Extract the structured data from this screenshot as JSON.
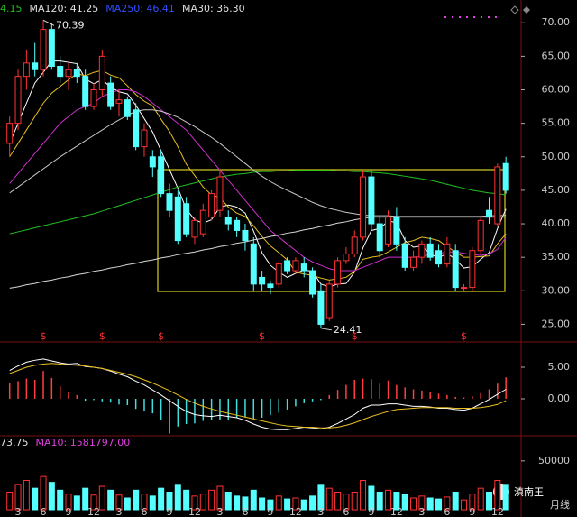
{
  "chart_data": [
    {
      "type": "candlestick",
      "legend": [
        {
          "label": "4.15",
          "color": "#20c020"
        },
        {
          "label": "MA120: 41.25",
          "color": "#e0e0e0"
        },
        {
          "label": "MA250: 46.41",
          "color": "#3050ff"
        },
        {
          "label": "MA30: 36.30",
          "color": "#e0e0e0"
        }
      ],
      "up_color": "#ff3232",
      "down_color": "#54ffff",
      "ylim": [
        22.5,
        73.4
      ],
      "yticks": [
        {
          "value": 25,
          "label": "25.00"
        },
        {
          "value": 30,
          "label": "30.00"
        },
        {
          "value": 35,
          "label": "35.00"
        },
        {
          "value": 40,
          "label": "40.00"
        },
        {
          "value": 45,
          "label": "45.00"
        },
        {
          "value": 50,
          "label": "50.00"
        },
        {
          "value": 55,
          "label": "55.00"
        },
        {
          "value": 60,
          "label": "60.00"
        },
        {
          "value": 65,
          "label": "65.00"
        },
        {
          "value": 70,
          "label": "70.00"
        }
      ],
      "open": [
        52,
        55,
        62,
        64,
        63,
        69,
        63.5,
        62,
        63,
        62,
        57.5,
        60,
        61,
        58,
        58.5,
        57,
        51.5,
        50,
        50,
        44.5,
        44,
        43,
        38,
        38.5,
        41,
        42,
        41,
        40.5,
        39,
        37,
        32,
        31,
        31,
        34.5,
        33,
        34,
        33,
        30,
        26,
        31,
        34.5,
        35.5,
        38,
        47,
        40,
        37,
        41,
        37,
        33.5,
        35,
        37,
        36,
        34,
        36,
        30.5,
        30.5,
        36,
        42,
        40,
        49
      ],
      "high": [
        56,
        63,
        66,
        67,
        70.39,
        70,
        65,
        64,
        64,
        63,
        61,
        66,
        62,
        60,
        59,
        58,
        55,
        51,
        51,
        46,
        45,
        44,
        41,
        43,
        45,
        48,
        42,
        41,
        40,
        38,
        33,
        31.5,
        34.5,
        35,
        35,
        35,
        33.5,
        31,
        31.5,
        35,
        36.5,
        39,
        48,
        48,
        41,
        42,
        42.5,
        38,
        36,
        37.5,
        38,
        37,
        38,
        37,
        31,
        36.5,
        41,
        44,
        49,
        50
      ],
      "low": [
        50,
        54,
        60,
        62,
        62,
        63,
        61,
        60,
        61,
        57,
        57,
        59,
        57,
        56,
        55.5,
        51,
        50,
        47,
        44,
        41,
        37,
        38,
        37,
        38,
        40.5,
        41,
        39,
        38,
        36,
        30,
        30,
        29.5,
        30.5,
        32.5,
        32.5,
        32,
        29,
        24.41,
        25.5,
        30.5,
        34,
        35,
        37.5,
        39,
        35,
        36.5,
        36,
        33,
        33,
        34,
        34.5,
        33.5,
        33.5,
        30,
        30,
        30,
        35.5,
        40,
        39.5,
        44.5
      ],
      "close": [
        55,
        62,
        64,
        63,
        69,
        63.5,
        62,
        63,
        62,
        57.5,
        60,
        65,
        57.5,
        58.5,
        56,
        51.5,
        54,
        48.5,
        44.5,
        42,
        37.5,
        38.5,
        40.5,
        42,
        44.5,
        47,
        40,
        39,
        37.5,
        31,
        31,
        30.5,
        34,
        33,
        34.5,
        33,
        29.5,
        25,
        31,
        34.5,
        35.5,
        38,
        47,
        40,
        36,
        41,
        37,
        33.5,
        35,
        37,
        35,
        34,
        37,
        30.5,
        30.5,
        36,
        40.5,
        41,
        48.5,
        45
      ],
      "series": [
        {
          "color": "#ffffff",
          "values": [
            52,
            55,
            58,
            61,
            62.6,
            64.3,
            64.3,
            64.1,
            63.9,
            61.6,
            60.9,
            61.5,
            60.4,
            59.7,
            59.4,
            57.7,
            55.7,
            53.7,
            50.9,
            48.1,
            45.3,
            42.2,
            40.6,
            40.1,
            40.6,
            42.5,
            42.8,
            42.5,
            41.6,
            38.9,
            35.7,
            33.8,
            32.8,
            32.0,
            32.6,
            33.1,
            32.9,
            31.0,
            30.6,
            31.0,
            31.1,
            32.8,
            36.4,
            39.0,
            39.3,
            40.4,
            40.2,
            37.5,
            36.5,
            36.7,
            35.5,
            34.9,
            35.6,
            34.7,
            33.4,
            33.6,
            34.7,
            35.7,
            39.3,
            42.2
          ]
        },
        {
          "color": "#e8c020",
          "values": [
            50,
            52,
            54,
            56,
            58,
            59.5,
            60.5,
            61.5,
            62.4,
            62.1,
            62.6,
            62.9,
            62.2,
            61.8,
            60.6,
            59.3,
            58.3,
            57.6,
            55.6,
            53.8,
            51.5,
            48.9,
            47.2,
            45.5,
            44.3,
            43.9,
            42.5,
            41.6,
            41.1,
            39.7,
            38.1,
            36.7,
            35.7,
            34.6,
            32.8,
            32.5,
            32.3,
            31.9,
            31.6,
            31.8,
            32.0,
            32.9,
            34.7,
            35.0,
            35.2,
            35.8,
            36.5,
            37.2,
            37.5,
            38.0,
            37.8,
            37.5,
            36.6,
            35.8,
            35.0,
            35.0,
            35.1,
            35.2,
            37.0,
            38.5
          ]
        },
        {
          "color": "#d030d0",
          "values": [
            46,
            47.5,
            49,
            50.5,
            52,
            53.5,
            55,
            56,
            57,
            57.5,
            58,
            59,
            59.5,
            60,
            60,
            59.7,
            59,
            58,
            57,
            56,
            55,
            54,
            52.5,
            51,
            49.5,
            48,
            46.5,
            45,
            43.5,
            42,
            40.5,
            39,
            38,
            37,
            36,
            35,
            34.3,
            33.8,
            33.3,
            33,
            33,
            33,
            33.5,
            34,
            34.5,
            35,
            35,
            35,
            35,
            35.2,
            35.4,
            35.6,
            35.8,
            35.8,
            35.6,
            35.4,
            35.3,
            35.5,
            36.2,
            38
          ]
        },
        {
          "color": "#20c020",
          "values": [
            38.5,
            38.8,
            39.1,
            39.4,
            39.7,
            40,
            40.3,
            40.6,
            40.9,
            41.2,
            41.5,
            41.9,
            42.3,
            42.7,
            43.1,
            43.5,
            43.9,
            44.3,
            44.7,
            45.1,
            45.5,
            45.8,
            46.1,
            46.4,
            46.7,
            47,
            47.2,
            47.4,
            47.5,
            47.7,
            47.8,
            47.8,
            47.9,
            47.9,
            48,
            48,
            48,
            48,
            48,
            47.9,
            47.9,
            47.8,
            47.8,
            47.7,
            47.6,
            47.5,
            47.3,
            47.1,
            46.9,
            46.7,
            46.5,
            46.2,
            45.9,
            45.6,
            45.3,
            45,
            44.8,
            44.6,
            44.5,
            44.3
          ]
        },
        {
          "color": "#c8c8c8",
          "values": [
            44.6,
            45.5,
            46.4,
            47.3,
            48.2,
            49.1,
            50,
            50.8,
            51.6,
            52.4,
            53.2,
            54,
            54.8,
            55.5,
            56.2,
            56.8,
            57,
            57,
            56.8,
            56.4,
            55.9,
            55.2,
            54.5,
            53.7,
            52.9,
            52,
            51,
            50,
            49,
            48,
            47.1,
            46.3,
            45.6,
            45,
            44.4,
            43.8,
            43.2,
            42.7,
            42.3,
            42,
            41.7,
            41.5,
            41.3,
            41.2,
            41.2,
            41.2,
            41.1,
            41.1,
            41.1,
            41.1,
            41.1,
            41.1,
            41.1,
            41.1,
            41.1,
            41.1,
            41.1,
            41.2,
            41.2,
            41.25
          ]
        },
        {
          "color": "#d8d8d8",
          "values": [
            30.4,
            30.6,
            30.9,
            31.1,
            31.4,
            31.6,
            31.9,
            32.1,
            32.4,
            32.6,
            32.9,
            33.1,
            33.4,
            33.6,
            33.9,
            34.1,
            34.4,
            34.6,
            34.9,
            35.1,
            35.4,
            35.6,
            35.8,
            36.1,
            36.3,
            36.6,
            36.8,
            37.1,
            37.3,
            37.6,
            37.8,
            38.1,
            38.3,
            38.6,
            38.8,
            39.1,
            39.3,
            39.6,
            39.8,
            40.1,
            40.3,
            40.6,
            40.8,
            41,
            41,
            41,
            41,
            41,
            41,
            41,
            41,
            41,
            41,
            41,
            41,
            41,
            41,
            41,
            41,
            41
          ]
        }
      ],
      "annotations": [
        70.39,
        24.41
      ],
      "dividend_label": "$",
      "dividend_at": [
        4,
        11,
        18,
        30,
        41,
        54
      ]
    },
    {
      "type": "macd",
      "up_color": "#ff4040",
      "down_color": "#40e0e0",
      "ylim": [
        -5.43,
        8.86
      ],
      "yticks": [
        {
          "value": 5,
          "label": "5.00"
        },
        {
          "value": 0,
          "label": "0.00"
        }
      ],
      "values": [
        2.5,
        2.8,
        3.2,
        3.0,
        4.4,
        3.3,
        2.0,
        1.0,
        0.6,
        -0.3,
        -0.2,
        -0.4,
        -0.6,
        -0.9,
        -1.0,
        -1.6,
        -1.9,
        -2.3,
        -3.3,
        -5.5,
        -4.4,
        -4.0,
        -3.9,
        -3.5,
        -3.3,
        -3.4,
        -3.3,
        -3.0,
        -2.9,
        -3.2,
        -3.0,
        -2.6,
        -2.2,
        -1.7,
        -1.2,
        -0.7,
        -0.4,
        -0.2,
        0.6,
        1.4,
        2.2,
        3.0,
        3.2,
        3.1,
        2.4,
        2.9,
        2.2,
        1.8,
        1.5,
        1.3,
        1.0,
        0.8,
        0.6,
        0.3,
        0.2,
        0.4,
        0.9,
        1.5,
        2.4,
        3.4
      ],
      "series": [
        {
          "color": "#ffffff",
          "values": [
            4.5,
            5.2,
            5.8,
            6.1,
            6.3,
            6.0,
            5.7,
            5.5,
            5.6,
            5.1,
            5.0,
            4.8,
            4.4,
            3.9,
            3.5,
            2.8,
            2.2,
            1.4,
            0.6,
            -0.3,
            -1.2,
            -2.0,
            -2.5,
            -2.7,
            -2.8,
            -2.6,
            -2.8,
            -3.0,
            -3.4,
            -4.0,
            -4.5,
            -4.8,
            -4.9,
            -4.9,
            -4.7,
            -4.5,
            -4.6,
            -4.8,
            -4.5,
            -3.9,
            -3.2,
            -2.5,
            -1.5,
            -1.0,
            -1.0,
            -0.8,
            -0.8,
            -1.0,
            -1.2,
            -1.2,
            -1.3,
            -1.5,
            -1.5,
            -1.7,
            -1.8,
            -1.5,
            -0.8,
            -0.1,
            0.7,
            1.5
          ]
        },
        {
          "color": "#e8c020",
          "values": [
            4.0,
            4.5,
            5.0,
            5.3,
            5.5,
            5.6,
            5.5,
            5.4,
            5.3,
            5.2,
            5.0,
            4.8,
            4.5,
            4.2,
            3.9,
            3.5,
            3.0,
            2.5,
            1.9,
            1.3,
            0.6,
            -0.1,
            -0.7,
            -1.2,
            -1.6,
            -2.0,
            -2.3,
            -2.6,
            -2.9,
            -3.2,
            -3.5,
            -3.8,
            -4.1,
            -4.3,
            -4.4,
            -4.5,
            -4.5,
            -4.6,
            -4.6,
            -4.5,
            -4.2,
            -3.8,
            -3.3,
            -2.8,
            -2.4,
            -2.0,
            -1.7,
            -1.6,
            -1.5,
            -1.4,
            -1.4,
            -1.4,
            -1.4,
            -1.5,
            -1.5,
            -1.5,
            -1.4,
            -1.2,
            -0.9,
            -0.3
          ]
        }
      ]
    },
    {
      "type": "volume",
      "legend": [
        {
          "label": "73.75",
          "color": "#e0e0e0"
        },
        {
          "label": "MA10: 1581797.00",
          "color": "#e040e0"
        }
      ],
      "ylim": [
        0,
        72000
      ],
      "yticks": [
        50000
      ],
      "x_label": "月线",
      "watermark": "滇南王",
      "categories": [
        null,
        "3",
        null,
        null,
        "6",
        null,
        null,
        "9",
        null,
        null,
        "12",
        null,
        null,
        "3",
        null,
        null,
        "6",
        null,
        null,
        "9",
        null,
        null,
        "12",
        null,
        null,
        "3",
        null,
        null,
        "6",
        null,
        null,
        "9",
        null,
        null,
        "12",
        null,
        null,
        "3",
        null,
        null,
        "6",
        null,
        null,
        "9",
        null,
        null,
        "12",
        null,
        null,
        "3",
        null,
        null,
        "6",
        null,
        null,
        "9",
        null,
        null,
        "12",
        null
      ],
      "values": [
        18000,
        26000,
        30000,
        22000,
        34000,
        28000,
        20000,
        16000,
        14000,
        22000,
        15000,
        24000,
        20000,
        15000,
        12000,
        20000,
        16000,
        14000,
        22000,
        18000,
        26000,
        20000,
        14000,
        16000,
        20000,
        24000,
        18000,
        14000,
        13000,
        20000,
        12000,
        10000,
        14000,
        11000,
        12000,
        10000,
        14000,
        26000,
        22000,
        18000,
        16000,
        18000,
        30000,
        24000,
        18000,
        20000,
        18000,
        16000,
        12000,
        14000,
        12000,
        11000,
        13000,
        18000,
        10000,
        16000,
        22000,
        18000,
        30000,
        26000
      ]
    }
  ]
}
